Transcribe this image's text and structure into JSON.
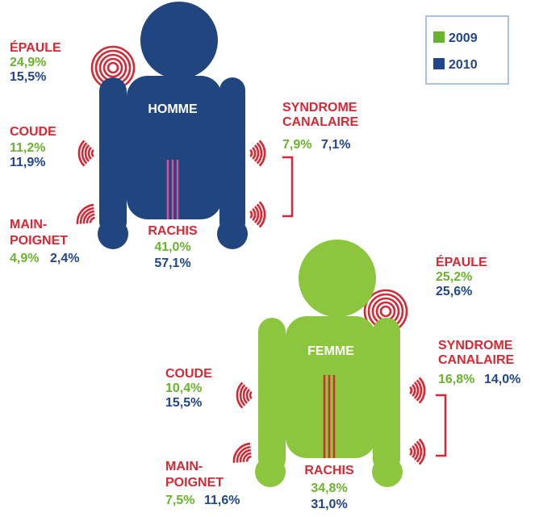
{
  "legend": {
    "items": [
      {
        "label": "2009",
        "color": "#6ab42d"
      },
      {
        "label": "2010",
        "color": "#21468c"
      }
    ]
  },
  "figures": [
    {
      "label": "HOMME",
      "parts": [
        {
          "name": [
            "ÉPAULE"
          ],
          "values": [
            "24,9%",
            "15,5%"
          ]
        },
        {
          "name": [
            "COUDE"
          ],
          "values": [
            "11,2%",
            "11,9%"
          ]
        },
        {
          "name": [
            "MAIN-",
            "POIGNET"
          ],
          "values": [
            "4,9%",
            "2,4%"
          ]
        },
        {
          "name": [
            "SYNDROME",
            "CANALAIRE"
          ],
          "values": [
            "7,9%",
            "7,1%"
          ]
        },
        {
          "name": [
            "RACHIS"
          ],
          "values": [
            "41,0%",
            "57,1%"
          ]
        }
      ]
    },
    {
      "label": "FEMME",
      "parts": [
        {
          "name": [
            "ÉPAULE"
          ],
          "values": [
            "25,2%",
            "25,6%"
          ]
        },
        {
          "name": [
            "COUDE"
          ],
          "values": [
            "10,4%",
            "15,5%"
          ]
        },
        {
          "name": [
            "MAIN-",
            "POIGNET"
          ],
          "values": [
            "7,5%",
            "11,6%"
          ]
        },
        {
          "name": [
            "SYNDROME",
            "CANALAIRE"
          ],
          "values": [
            "16,8%",
            "14,0%"
          ]
        },
        {
          "name": [
            "RACHIS"
          ],
          "values": [
            "34,8%",
            "31,0%"
          ]
        }
      ]
    }
  ]
}
